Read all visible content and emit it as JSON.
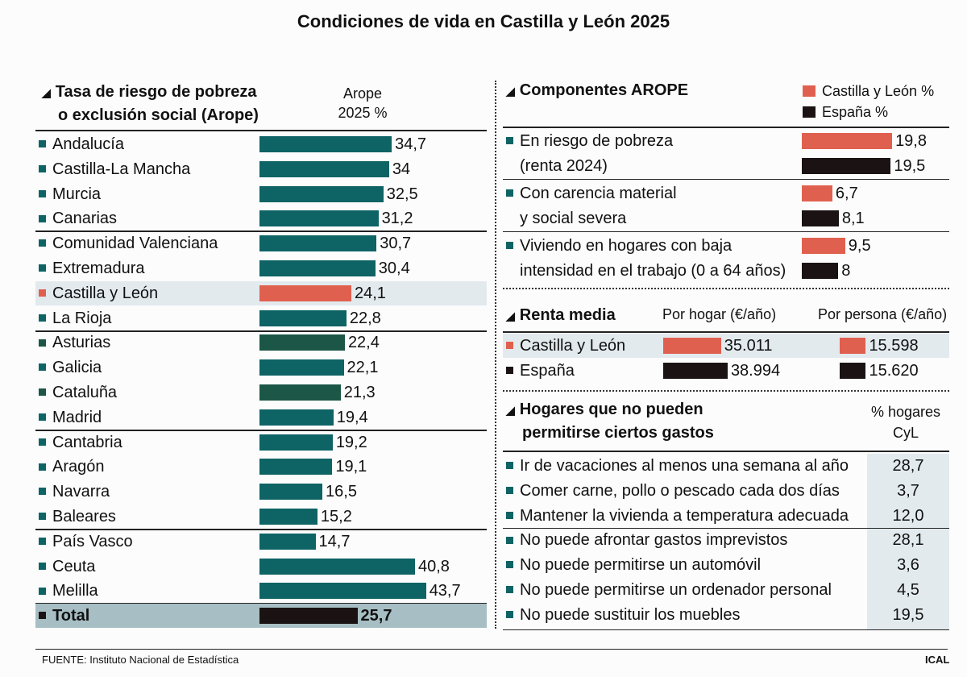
{
  "title": "Condiciones de vida en Castilla y León 2025",
  "colors": {
    "teal": "#0e6365",
    "dark_green": "#1b5646",
    "castilla": "#e0604f",
    "espana": "#1b1313",
    "highlight": "#e2eaee",
    "total_bg": "#a7bfc4"
  },
  "chart_data": [
    {
      "type": "bar",
      "title": "Tasa de riesgo de pobreza o exclusión social (Arope)",
      "ylabel": "Arope 2025 %",
      "categories": [
        "Andalucía",
        "Castilla-La Mancha",
        "Murcia",
        "Canarias",
        "Comunidad Valenciana",
        "Extremadura",
        "Castilla y León",
        "La Rioja",
        "Asturias",
        "Galicia",
        "Cataluña",
        "Madrid",
        "Cantabria",
        "Aragón",
        "Navarra",
        "Baleares",
        "País Vasco",
        "Ceuta",
        "Melilla",
        "Total"
      ],
      "labels": [
        "34,7",
        "34",
        "32,5",
        "31,2",
        "30,7",
        "30,4",
        "24,1",
        "22,8",
        "22,4",
        "22,1",
        "21,3",
        "19,4",
        "19,2",
        "19,1",
        "16,5",
        "15,2",
        "14,7",
        "40,8",
        "43,7",
        "25,7"
      ],
      "values": [
        34.7,
        34,
        32.5,
        31.2,
        30.7,
        30.4,
        24.1,
        22.8,
        22.4,
        22.1,
        21.3,
        19.4,
        19.2,
        19.1,
        16.5,
        15.2,
        14.7,
        40.8,
        43.7,
        25.7
      ]
    },
    {
      "type": "bar",
      "title": "Componentes AROPE",
      "legend": [
        "Castilla y León %",
        "España %"
      ],
      "categories": [
        [
          "En riesgo de pobreza",
          "(renta 2024)"
        ],
        [
          "Con carencia material",
          "y social severa"
        ],
        [
          "Viviendo en hogares con baja",
          "intensidad en el trabajo (0 a 64 años)"
        ]
      ],
      "series": [
        {
          "name": "Castilla y León %",
          "values": [
            19.8,
            6.7,
            9.5
          ],
          "labels": [
            "19,8",
            "6,7",
            "9,5"
          ]
        },
        {
          "name": "España %",
          "values": [
            19.5,
            8.1,
            8
          ],
          "labels": [
            "19,5",
            "8,1",
            "8"
          ]
        }
      ]
    },
    {
      "type": "bar",
      "title": "Renta media",
      "columns": [
        "Por hogar (€/año)",
        "Por persona (€/año)"
      ],
      "categories": [
        "Castilla y León",
        "España"
      ],
      "por_hogar": [
        35011,
        38994
      ],
      "por_hogar_labels": [
        "35.011",
        "38.994"
      ],
      "por_persona": [
        15598,
        15620
      ],
      "por_persona_labels": [
        "15.598",
        "15.620"
      ]
    },
    {
      "type": "table",
      "title": "Hogares que no pueden permitirse ciertos gastos",
      "column": [
        "% hogares",
        "CyL"
      ],
      "rows": [
        [
          "Ir de vacaciones al menos una semana al año",
          "28,7"
        ],
        [
          "Comer carne, pollo o pescado cada dos días",
          "3,7"
        ],
        [
          "Mantener la vivienda a temperatura adecuada",
          "12,0"
        ],
        [
          "No puede afrontar gastos imprevistos",
          "28,1"
        ],
        [
          "No puede permitirse un automóvil",
          "3,6"
        ],
        [
          "No puede permitirse un ordenador personal",
          "4,5"
        ],
        [
          "No puede sustituir los muebles",
          "19,5"
        ]
      ]
    }
  ],
  "left_header": [
    "Tasa de riesgo de pobreza",
    "o exclusión social (Arope)"
  ],
  "left_col": [
    "Arope",
    "2025 %"
  ],
  "hog_header": [
    "Hogares que no pueden",
    "permitirse ciertos gastos"
  ],
  "source": "FUENTE: Instituto Nacional de Estadística",
  "credit": "ICAL"
}
